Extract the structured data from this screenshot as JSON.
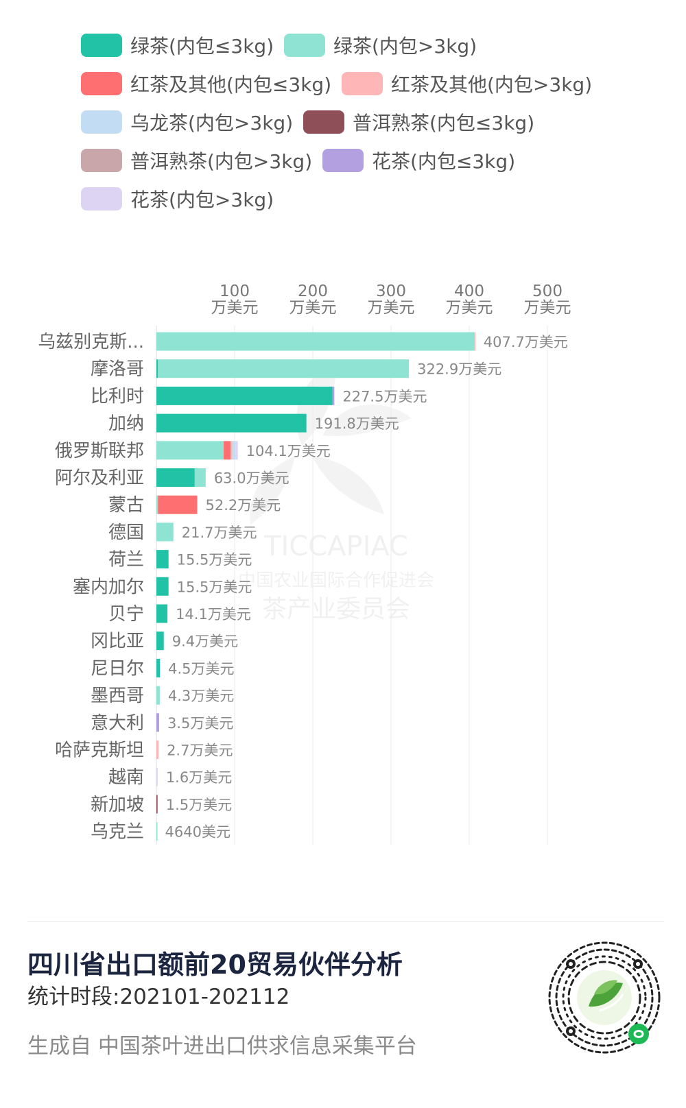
{
  "chart_data": {
    "type": "bar",
    "orientation": "horizontal",
    "stacked": true,
    "categories": [
      "乌兹别克斯...",
      "摩洛哥",
      "比利时",
      "加纳",
      "俄罗斯联邦",
      "阿尔及利亚",
      "蒙古",
      "德国",
      "荷兰",
      "塞内加尔",
      "贝宁",
      "冈比亚",
      "尼日尔",
      "墨西哥",
      "意大利",
      "哈萨克斯坦",
      "越南",
      "新加坡",
      "乌克兰"
    ],
    "totals": [
      407.7,
      322.9,
      227.5,
      191.8,
      104.1,
      63.0,
      52.2,
      21.7,
      15.5,
      15.5,
      14.1,
      9.4,
      4.5,
      4.3,
      3.5,
      2.7,
      1.6,
      1.5,
      0.464
    ],
    "total_labels": [
      "407.7万美元",
      "322.9万美元",
      "227.5万美元",
      "191.8万美元",
      "104.1万美元",
      "63.0万美元",
      "52.2万美元",
      "21.7万美元",
      "15.5万美元",
      "15.5万美元",
      "14.1万美元",
      "9.4万美元",
      "4.5万美元",
      "4.3万美元",
      "3.5万美元",
      "2.7万美元",
      "1.6万美元",
      "1.5万美元",
      "4640美元"
    ],
    "series": [
      {
        "name": "绿茶(内包≤3kg)",
        "color": "#22c2a6",
        "values": [
          0,
          2,
          225,
          191.8,
          0,
          49,
          0,
          0,
          15.5,
          15.5,
          14.1,
          9.4,
          4.5,
          0,
          0,
          0,
          0,
          0,
          0
        ]
      },
      {
        "name": "绿茶(内包>3kg)",
        "color": "#8fe3d3",
        "values": [
          406.7,
          320.9,
          0,
          0,
          86,
          14,
          2,
          21.7,
          0,
          0,
          0,
          0,
          0,
          4.3,
          0,
          0,
          0,
          0,
          0.464
        ]
      },
      {
        "name": "红茶及其他(内包≤3kg)",
        "color": "#fd6f70",
        "values": [
          0,
          0,
          0,
          0,
          9,
          0,
          50.2,
          0,
          0,
          0,
          0,
          0,
          0,
          0,
          0,
          0,
          0,
          0,
          0
        ]
      },
      {
        "name": "红茶及其他(内包>3kg)",
        "color": "#ffb6b6",
        "values": [
          1,
          0,
          0,
          0,
          2,
          0,
          0,
          0,
          0,
          0,
          0,
          0,
          0,
          0,
          0,
          2.7,
          0,
          0,
          0
        ]
      },
      {
        "name": "乌龙茶(内包>3kg)",
        "color": "#c2dcf3",
        "values": [
          0,
          0,
          0,
          0,
          4,
          0,
          0,
          0,
          0,
          0,
          0,
          0,
          0,
          0,
          0,
          0,
          0,
          0,
          0
        ]
      },
      {
        "name": "普洱熟茶(内包≤3kg)",
        "color": "#8e4f58",
        "values": [
          0,
          0,
          0,
          0,
          0,
          0,
          0,
          0,
          0,
          0,
          0,
          0,
          0,
          0,
          0,
          0,
          0,
          1.5,
          0
        ]
      },
      {
        "name": "普洱熟茶(内包>3kg)",
        "color": "#c8a6aa",
        "values": [
          0,
          0,
          0,
          0,
          0,
          0,
          0,
          0,
          0,
          0,
          0,
          0,
          0,
          0,
          0,
          0,
          0,
          0,
          0
        ]
      },
      {
        "name": "花茶(内包≤3kg)",
        "color": "#b3a0e0",
        "values": [
          0,
          0,
          2.5,
          0,
          0,
          0,
          0,
          0,
          0,
          0,
          0,
          0,
          0,
          0,
          3.5,
          0,
          0,
          0,
          0
        ]
      },
      {
        "name": "花茶(内包>3kg)",
        "color": "#ddd3f2",
        "values": [
          0,
          0,
          0,
          0,
          3.1,
          0,
          0,
          0,
          0,
          0,
          0,
          0,
          0,
          0,
          0,
          0,
          1.6,
          0,
          0
        ]
      }
    ],
    "xaxis": {
      "position": "top",
      "ticks": [
        100,
        200,
        300,
        400,
        500
      ],
      "tick_labels": [
        "100",
        "200",
        "300",
        "400",
        "500"
      ],
      "tick_unit": "万美元",
      "range": [
        0,
        500
      ]
    },
    "grid": true,
    "legend": "top"
  },
  "watermark": {
    "text_latin": "TICCAPIAC",
    "text_cn1": "中国农业国际合作促进会",
    "text_cn2": "茶产业委员会"
  },
  "footer": {
    "title": "四川省出口额前20贸易伙伴分析",
    "period": "统计时段:202101-202112",
    "source": "生成自 中国茶叶进出口供求信息采集平台"
  },
  "qr": {
    "icon": "wechat-mini-program-qr-icon"
  }
}
